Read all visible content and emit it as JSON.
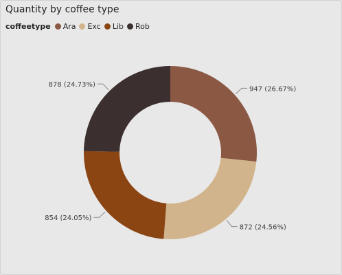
{
  "chart_data": {
    "type": "pie",
    "donut": true,
    "title": "Quantity by coffee type",
    "legend_title": "coffeetype",
    "legend_position": "top-left",
    "slices": [
      {
        "name": "Ara",
        "value": 947,
        "label": "947 (26.67%)",
        "color": "#8b5844"
      },
      {
        "name": "Exc",
        "value": 872,
        "label": "872 (24.56%)",
        "color": "#d2b48c"
      },
      {
        "name": "Lib",
        "value": 854,
        "label": "854 (24.05%)",
        "color": "#8b4513"
      },
      {
        "name": "Rob",
        "value": 878,
        "label": "878 (24.73%)",
        "color": "#3b2f2f"
      }
    ]
  }
}
